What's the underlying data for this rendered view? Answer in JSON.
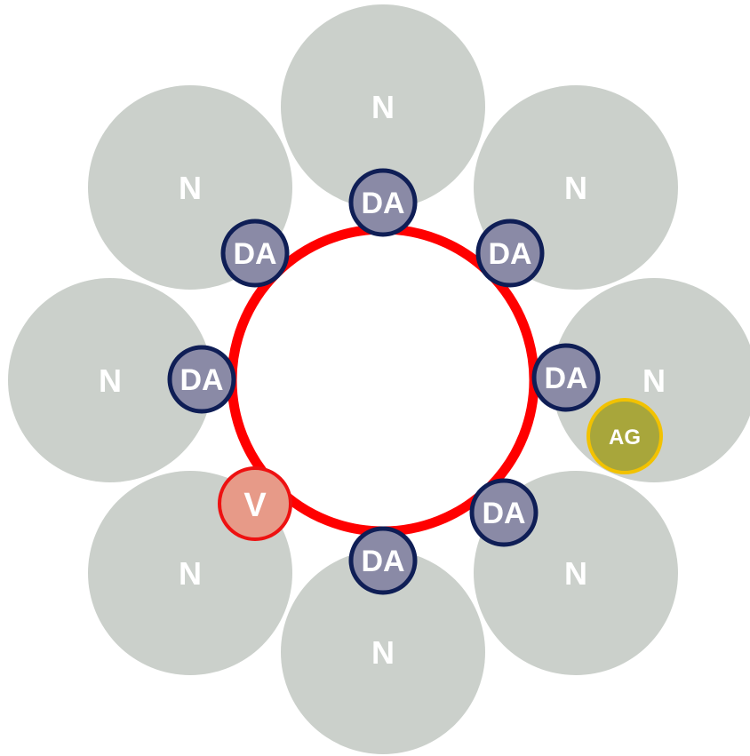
{
  "diagram": {
    "outer_nodes": [
      {
        "label": "N"
      },
      {
        "label": "N"
      },
      {
        "label": "N"
      },
      {
        "label": "N"
      },
      {
        "label": "N"
      },
      {
        "label": "N"
      },
      {
        "label": "N"
      },
      {
        "label": "N"
      }
    ],
    "ring_nodes": [
      {
        "label": "DA"
      },
      {
        "label": "DA"
      },
      {
        "label": "DA"
      },
      {
        "label": "DA"
      },
      {
        "label": "DA"
      },
      {
        "label": "DA"
      },
      {
        "label": "DA"
      }
    ],
    "special_ring_node": {
      "label": "V"
    },
    "extra_node": {
      "label": "AG"
    },
    "colors": {
      "outer_fill": "#cbd0cb",
      "ring_stroke": "#ff0000",
      "da_fill": "#8a8aa6",
      "da_stroke": "#0f1e56",
      "v_fill": "#e79a88",
      "v_stroke": "#ee1111",
      "ag_fill": "#a8a63b",
      "ag_stroke": "#f2c200",
      "label": "#ffffff"
    }
  }
}
